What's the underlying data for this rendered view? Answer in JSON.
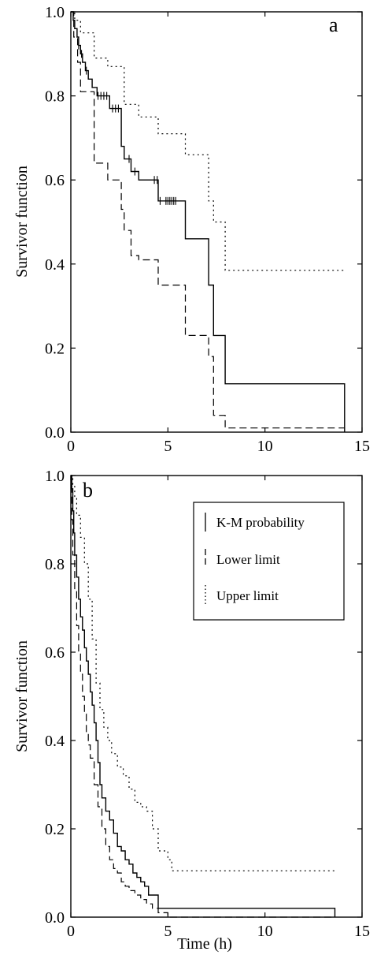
{
  "chart_data": [
    {
      "type": "line",
      "panel_label": "a",
      "ylabel": "Survivor function",
      "xlabel": "",
      "xlim": [
        0,
        15
      ],
      "ylim": [
        0,
        1
      ],
      "xticks": [
        "0",
        "5",
        "10",
        "15"
      ],
      "yticks": [
        "0.0",
        "0.2",
        "0.4",
        "0.6",
        "0.8",
        "1.0"
      ],
      "legend": null,
      "series": [
        {
          "role": "estimate",
          "style": "solid",
          "x": [
            0,
            0.12,
            0.2,
            0.32,
            0.4,
            0.5,
            0.6,
            0.75,
            0.9,
            1.1,
            1.35,
            1.6,
            2.0,
            2.6,
            2.75,
            3.1,
            3.5,
            4.5,
            5.9,
            7.1,
            7.35,
            7.95,
            14.1
          ],
          "y": [
            1.0,
            0.98,
            0.96,
            0.94,
            0.92,
            0.9,
            0.88,
            0.86,
            0.84,
            0.82,
            0.8,
            0.8,
            0.77,
            0.68,
            0.65,
            0.62,
            0.6,
            0.55,
            0.46,
            0.35,
            0.23,
            0.115,
            0.0
          ]
        },
        {
          "role": "lower limit",
          "style": "dashed",
          "x": [
            0,
            0.15,
            0.35,
            0.5,
            1.2,
            1.9,
            2.6,
            2.75,
            3.1,
            3.5,
            4.5,
            5.9,
            7.1,
            7.35,
            7.95,
            14.1
          ],
          "y": [
            1.0,
            0.94,
            0.88,
            0.81,
            0.64,
            0.6,
            0.53,
            0.48,
            0.42,
            0.41,
            0.35,
            0.23,
            0.18,
            0.04,
            0.01,
            0.01
          ]
        },
        {
          "role": "upper limit",
          "style": "dotted",
          "x": [
            0,
            0.2,
            0.5,
            1.2,
            1.9,
            2.6,
            2.75,
            3.1,
            3.5,
            4.5,
            5.9,
            7.1,
            7.35,
            7.95,
            14.1
          ],
          "y": [
            1.0,
            0.98,
            0.95,
            0.89,
            0.87,
            0.87,
            0.78,
            0.78,
            0.75,
            0.71,
            0.66,
            0.55,
            0.5,
            0.385,
            0.385
          ]
        }
      ],
      "censor_marks": {
        "x": [
          0.4,
          0.55,
          0.8,
          1.4,
          1.55,
          1.7,
          1.85,
          2.15,
          2.3,
          2.45,
          3.0,
          3.3,
          4.3,
          4.45,
          4.6,
          4.9,
          5.0,
          5.1,
          5.2,
          5.3,
          5.4
        ],
        "y": [
          0.92,
          0.9,
          0.86,
          0.8,
          0.8,
          0.8,
          0.8,
          0.77,
          0.77,
          0.77,
          0.65,
          0.62,
          0.6,
          0.6,
          0.55,
          0.55,
          0.55,
          0.55,
          0.55,
          0.55,
          0.55
        ]
      }
    },
    {
      "type": "line",
      "panel_label": "b",
      "ylabel": "Survivor function",
      "xlabel": "Time (h)",
      "xlim": [
        0,
        15
      ],
      "ylim": [
        0,
        1
      ],
      "xticks": [
        "0",
        "5",
        "10",
        "15"
      ],
      "yticks": [
        "0.0",
        "0.2",
        "0.4",
        "0.6",
        "0.8",
        "1.0"
      ],
      "legend": {
        "placement": "top-right",
        "entries": [
          {
            "label": "K-M probability",
            "style": "solid"
          },
          {
            "label": "Lower limit",
            "style": "dashed"
          },
          {
            "label": "Upper limit",
            "style": "dotted"
          }
        ]
      },
      "series": [
        {
          "role": "K-M probability",
          "style": "solid",
          "x": [
            0,
            0.05,
            0.1,
            0.15,
            0.2,
            0.3,
            0.4,
            0.5,
            0.6,
            0.7,
            0.8,
            0.9,
            1.0,
            1.1,
            1.2,
            1.3,
            1.4,
            1.5,
            1.6,
            1.8,
            2.0,
            2.2,
            2.4,
            2.6,
            2.8,
            3.0,
            3.2,
            3.4,
            3.6,
            3.8,
            4.0,
            4.5,
            5.0,
            13.6
          ],
          "y": [
            1.0,
            0.97,
            0.92,
            0.87,
            0.82,
            0.77,
            0.72,
            0.68,
            0.65,
            0.61,
            0.58,
            0.55,
            0.51,
            0.48,
            0.44,
            0.4,
            0.35,
            0.3,
            0.27,
            0.24,
            0.22,
            0.19,
            0.16,
            0.15,
            0.13,
            0.12,
            0.1,
            0.09,
            0.08,
            0.07,
            0.05,
            0.02,
            0.02,
            0.0
          ]
        },
        {
          "role": "Lower limit",
          "style": "dashed",
          "x": [
            0,
            0.05,
            0.1,
            0.2,
            0.3,
            0.4,
            0.5,
            0.6,
            0.7,
            0.8,
            0.9,
            1.0,
            1.2,
            1.4,
            1.6,
            1.8,
            2.0,
            2.2,
            2.4,
            2.6,
            2.8,
            3.0,
            3.3,
            3.6,
            3.9,
            4.2,
            4.5,
            5.0,
            13.6
          ],
          "y": [
            1.0,
            0.9,
            0.82,
            0.74,
            0.66,
            0.6,
            0.55,
            0.5,
            0.46,
            0.42,
            0.39,
            0.36,
            0.3,
            0.25,
            0.2,
            0.16,
            0.13,
            0.11,
            0.1,
            0.08,
            0.07,
            0.06,
            0.05,
            0.04,
            0.03,
            0.02,
            0.01,
            0.0,
            0.0
          ]
        },
        {
          "role": "Upper limit",
          "style": "dotted",
          "x": [
            0,
            0.1,
            0.2,
            0.3,
            0.5,
            0.7,
            0.9,
            1.1,
            1.3,
            1.5,
            1.7,
            1.9,
            2.1,
            2.4,
            2.7,
            3.0,
            3.3,
            3.6,
            3.9,
            4.2,
            4.5,
            5.0,
            5.2,
            13.6
          ],
          "y": [
            1.0,
            0.98,
            0.95,
            0.91,
            0.86,
            0.8,
            0.72,
            0.63,
            0.53,
            0.47,
            0.43,
            0.4,
            0.37,
            0.34,
            0.32,
            0.29,
            0.26,
            0.25,
            0.24,
            0.2,
            0.15,
            0.13,
            0.105,
            0.105
          ]
        }
      ]
    }
  ]
}
